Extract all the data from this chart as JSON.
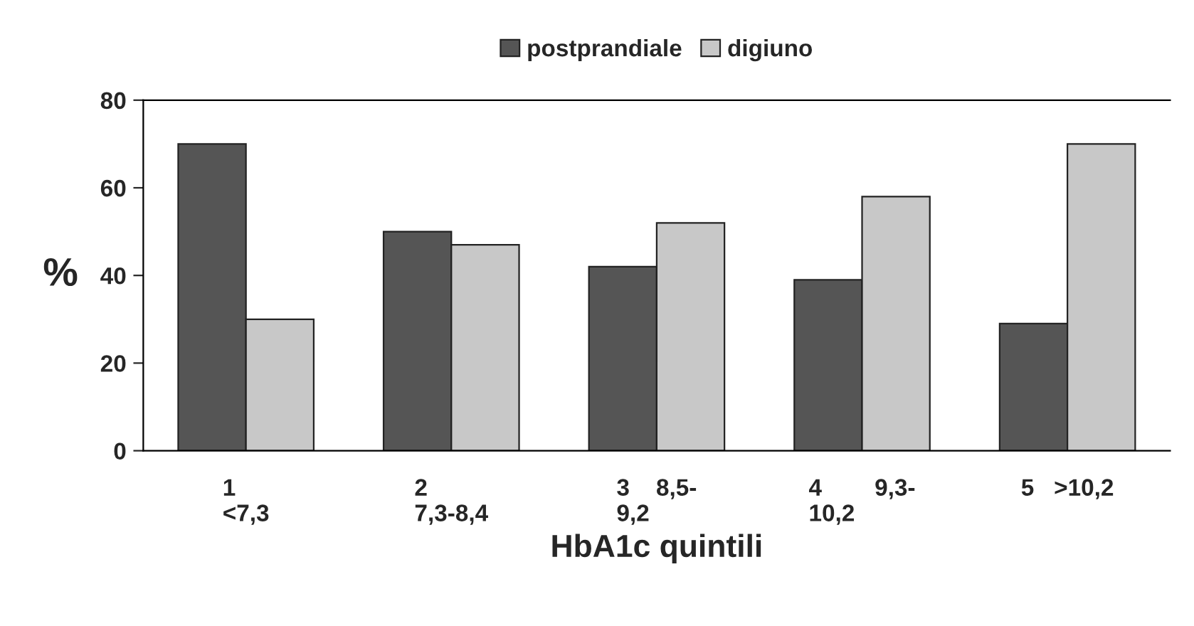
{
  "chart_data": {
    "type": "bar",
    "categories": [
      "1\n<7,3",
      "2\n7,3-8,4",
      "3    8,5-\n9,2",
      "4        9,3-\n10,2",
      "5   >10,2"
    ],
    "series": [
      {
        "name": "postprandiale",
        "color": "#555555",
        "values": [
          70,
          50,
          42,
          39,
          29
        ]
      },
      {
        "name": "digiuno",
        "color": "#c8c8c8",
        "values": [
          30,
          47,
          52,
          58,
          70
        ]
      }
    ],
    "xlabel": "HbA1c quintili",
    "ylabel": "%",
    "ylim": [
      0,
      80
    ],
    "yticks": [
      0,
      20,
      40,
      60,
      80
    ],
    "grid": false,
    "legend": "top"
  }
}
